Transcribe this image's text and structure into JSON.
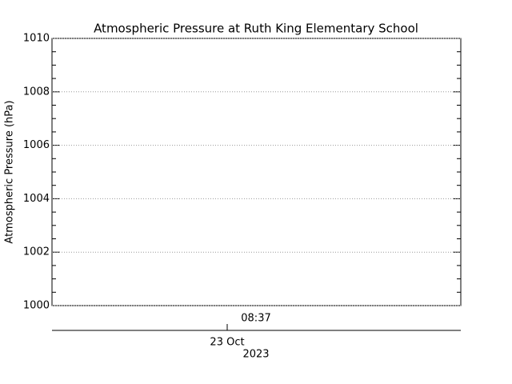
{
  "chart_data": {
    "type": "line",
    "title": "Atmospheric Pressure at Ruth King Elementary School",
    "y_label": "Atmospheric Pressure (hPa)",
    "ylim": [
      1000,
      1010
    ],
    "yticks": [
      1000,
      1002,
      1004,
      1006,
      1008,
      1010
    ],
    "y_minor_per_major": 4,
    "grid": true,
    "series": [],
    "x_time_label": "08:37",
    "x_date_label": "23 Oct",
    "x_year_label": "2023"
  }
}
